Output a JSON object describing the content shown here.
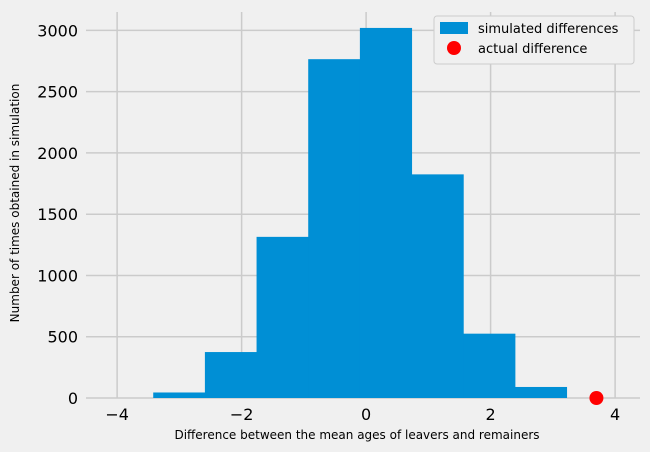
{
  "chart_data": {
    "type": "bar",
    "xlabel": "Difference between the mean ages of leavers and remainers",
    "ylabel": "Number of times obtained in simulation",
    "xlim": [
      -4.5,
      4.4
    ],
    "ylim": [
      0,
      3150
    ],
    "xticks": [
      -4,
      -2,
      0,
      2,
      4
    ],
    "xtick_labels": [
      "−4",
      "−2",
      "0",
      "2",
      "4"
    ],
    "yticks": [
      0,
      500,
      1000,
      1500,
      2000,
      2500,
      3000
    ],
    "ytick_labels": [
      "0",
      "500",
      "1000",
      "1500",
      "2000",
      "2500",
      "3000"
    ],
    "grid": true,
    "legend_position": "top-right",
    "bins": [
      -3.42,
      -2.59,
      -1.76,
      -0.93,
      -0.1,
      0.73,
      1.56,
      2.39,
      3.22
    ],
    "series": [
      {
        "name": "simulated differences",
        "type": "histogram",
        "color": "#008fd5",
        "values": [
          45,
          375,
          1315,
          2765,
          3020,
          1825,
          525,
          90
        ]
      },
      {
        "name": "actual difference",
        "type": "scatter",
        "color": "#ff0000",
        "points": [
          {
            "x": 3.7,
            "y": 0
          }
        ]
      }
    ],
    "legend": [
      "simulated differences",
      "actual difference"
    ]
  }
}
